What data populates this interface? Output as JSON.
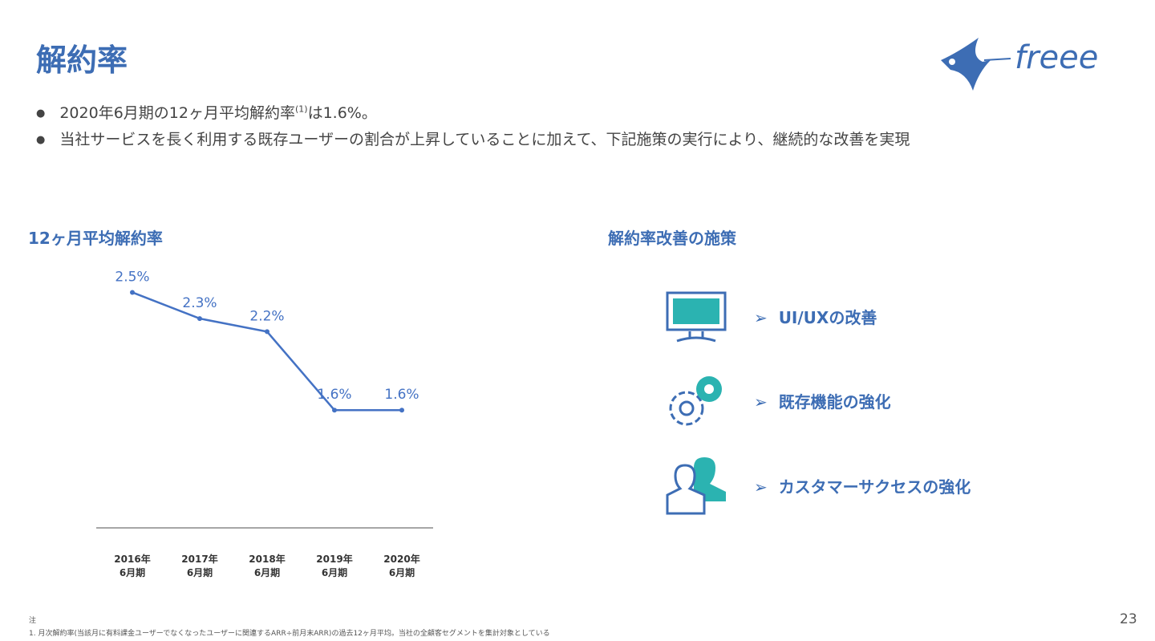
{
  "header": {
    "title": "解約率",
    "logo": "freee"
  },
  "bullets": [
    {
      "before": "2020年6月期の12ヶ月平均解約率",
      "sup": "(1)",
      "after": "は1.6%。"
    },
    {
      "before": "当社サービスを長く利用する既存ユーザーの割合が上昇していることに加えて、下記施策の実行により、継続的な改善を実現"
    }
  ],
  "chart_data": {
    "type": "line",
    "title": "12ヶ月平均解約率",
    "categories": [
      "2016年\n6月期",
      "2017年\n6月期",
      "2018年\n6月期",
      "2019年\n6月期",
      "2020年\n6月期"
    ],
    "values": [
      2.5,
      2.3,
      2.2,
      1.6,
      1.6
    ],
    "value_labels": [
      "2.5%",
      "2.3%",
      "2.2%",
      "1.6%",
      "1.6%"
    ],
    "color": "#4472c4",
    "ylim": [
      0.7,
      2.65
    ]
  },
  "measures": {
    "title": "解約率改善の施策",
    "items": [
      "UI/UXの改善",
      "既存機能の強化",
      "カスタマーサクセスの強化"
    ]
  },
  "footnote": {
    "label": "注",
    "text": "1. 月次解約率(当該月に有料課金ユーザーでなくなったユーザーに関連するARR÷前月末ARR)の過去12ヶ月平均。当社の全顧客セグメントを集計対象としている"
  },
  "page_number": "23"
}
